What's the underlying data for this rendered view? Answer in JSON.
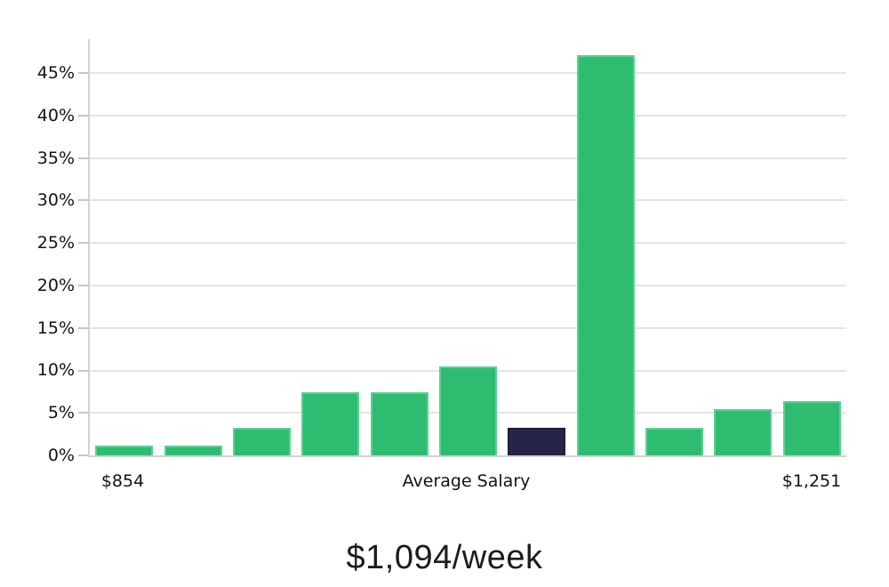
{
  "title": {
    "text": "$1,094/week"
  },
  "x_axis": {
    "first_tick": "$854",
    "title": "Average Salary",
    "last_tick": "$1,251"
  },
  "chart_data": {
    "type": "bar",
    "title": "$1,094/week",
    "xlabel": "Average Salary",
    "ylabel": "",
    "x_tick_labels": [
      "$854",
      "Average Salary",
      "$1,251"
    ],
    "y_tick_values": [
      0,
      5,
      10,
      15,
      20,
      25,
      30,
      35,
      40,
      45
    ],
    "y_tick_suffix": "%",
    "ylim": [
      0,
      49
    ],
    "grid": true,
    "legend_position": "none",
    "values": [
      1.1,
      1.1,
      3.2,
      7.4,
      7.4,
      10.5,
      3.2,
      47.1,
      3.2,
      5.4,
      6.4
    ],
    "highlight_index": 6,
    "series_note": "salary distribution histogram; dark bar marks the bin containing the average salary",
    "colors": {
      "bar": "#2ebd70",
      "bar_edge": "#5bd194",
      "highlight_bar": "#262547",
      "highlight_edge": "#1d1c39",
      "gridline": "#e4e4e4",
      "axis_line": "#d2d2d2",
      "tick_mark": "#c6c6c6",
      "label_text": "#131313"
    }
  }
}
